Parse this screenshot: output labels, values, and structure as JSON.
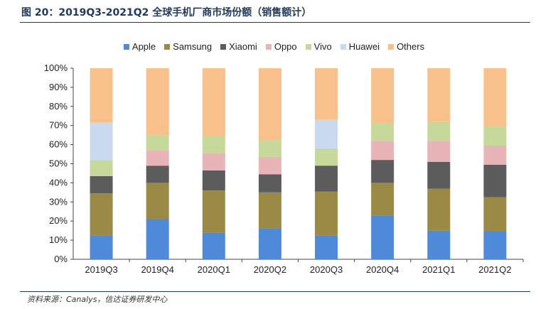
{
  "figure": {
    "title": "图 20：2019Q3-2021Q2 全球手机厂商市场份额（销售额计）",
    "source": "资料来源：Canalys，信达证券研发中心"
  },
  "chart_data": {
    "type": "bar",
    "stacked": true,
    "categories": [
      "2019Q3",
      "2019Q4",
      "2020Q1",
      "2020Q2",
      "2020Q3",
      "2020Q4",
      "2021Q1",
      "2021Q2"
    ],
    "ylim": [
      0,
      100
    ],
    "yticks": [
      "0%",
      "10%",
      "20%",
      "30%",
      "40%",
      "50%",
      "60%",
      "70%",
      "80%",
      "90%",
      "100%"
    ],
    "legend_position": "top",
    "grid": false,
    "series": [
      {
        "name": "Apple",
        "color": "#4f8ad8",
        "values": [
          12.5,
          21,
          14,
          16,
          12.5,
          23,
          15,
          14.5
        ]
      },
      {
        "name": "Samsung",
        "color": "#9b8a45",
        "values": [
          22,
          19,
          22,
          19,
          23,
          17,
          22,
          18
        ]
      },
      {
        "name": "Xiaomi",
        "color": "#5c5c5c",
        "values": [
          9,
          9,
          10.5,
          9.5,
          13.5,
          12,
          14,
          17
        ]
      },
      {
        "name": "Oppo",
        "color": "#e9b4b7",
        "values": [
          0,
          8,
          9,
          9,
          0,
          10,
          11,
          10
        ]
      },
      {
        "name": "Vivo",
        "color": "#c6d89a",
        "values": [
          8.5,
          8,
          9,
          9,
          9,
          9,
          10,
          10
        ]
      },
      {
        "name": "Huawei",
        "color": "#c9daf0",
        "values": [
          19.5,
          0,
          0,
          0,
          15,
          0,
          0,
          0
        ]
      },
      {
        "name": "Others",
        "color": "#f8c08a",
        "values": [
          28.5,
          35,
          35.5,
          37.5,
          27,
          29,
          28,
          30.5
        ]
      }
    ]
  }
}
